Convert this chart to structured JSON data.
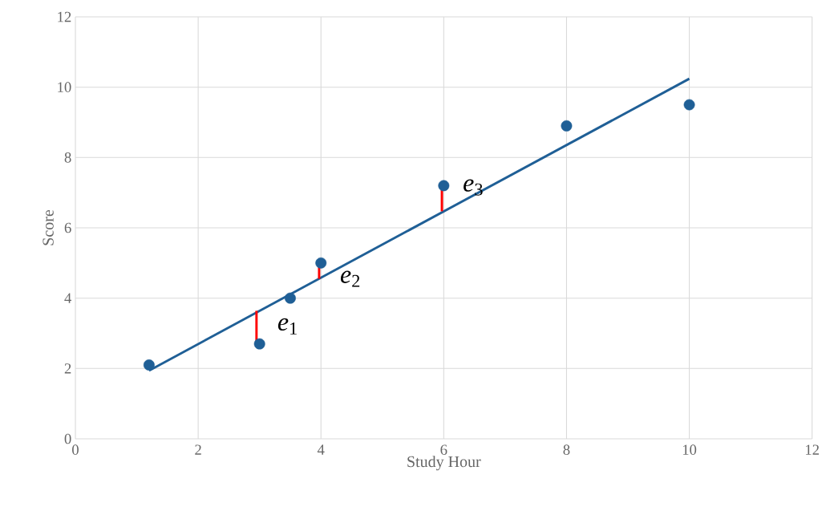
{
  "chart_data": {
    "type": "scatter",
    "xlabel": "Study Hour",
    "ylabel": "Score",
    "xlim": [
      0,
      12
    ],
    "ylim": [
      0,
      12
    ],
    "xticks": [
      0,
      2,
      4,
      6,
      8,
      10,
      12
    ],
    "yticks": [
      0,
      2,
      4,
      6,
      8,
      10,
      12
    ],
    "grid": true,
    "marker": "circle",
    "series": [
      {
        "type": "line",
        "color": "#1f5f96",
        "marker": "none",
        "x": [
          1.2,
          10
        ],
        "values": [
          1.94,
          10.24
        ]
      },
      {
        "type": "line",
        "color": "#ff0000",
        "marker": "none",
        "x": [
          2.95,
          2.95
        ],
        "values": [
          3.64,
          2.75
        ]
      },
      {
        "type": "line",
        "color": "#ff0000",
        "marker": "none",
        "x": [
          3.97,
          3.97
        ],
        "values": [
          4.55,
          5.0
        ]
      },
      {
        "type": "line",
        "color": "#ff0000",
        "marker": "none",
        "x": [
          5.97,
          5.97
        ],
        "values": [
          6.47,
          7.15
        ]
      },
      {
        "color": "#1f5f96",
        "x": [
          1.2,
          3,
          3.5,
          4,
          6,
          8,
          10
        ],
        "values": [
          2.1,
          2.7,
          4.0,
          5.0,
          7.2,
          8.9,
          9.5
        ]
      }
    ],
    "annotations": [
      {
        "text": "*e*$_{1}$",
        "x": 2.95,
        "y": 3.2
      },
      {
        "text": "*e*$_{2}$",
        "x": 3.97,
        "y": 4.55
      },
      {
        "text": "*e*$_{3}$",
        "x": 5.97,
        "y": 7.15
      }
    ]
  }
}
